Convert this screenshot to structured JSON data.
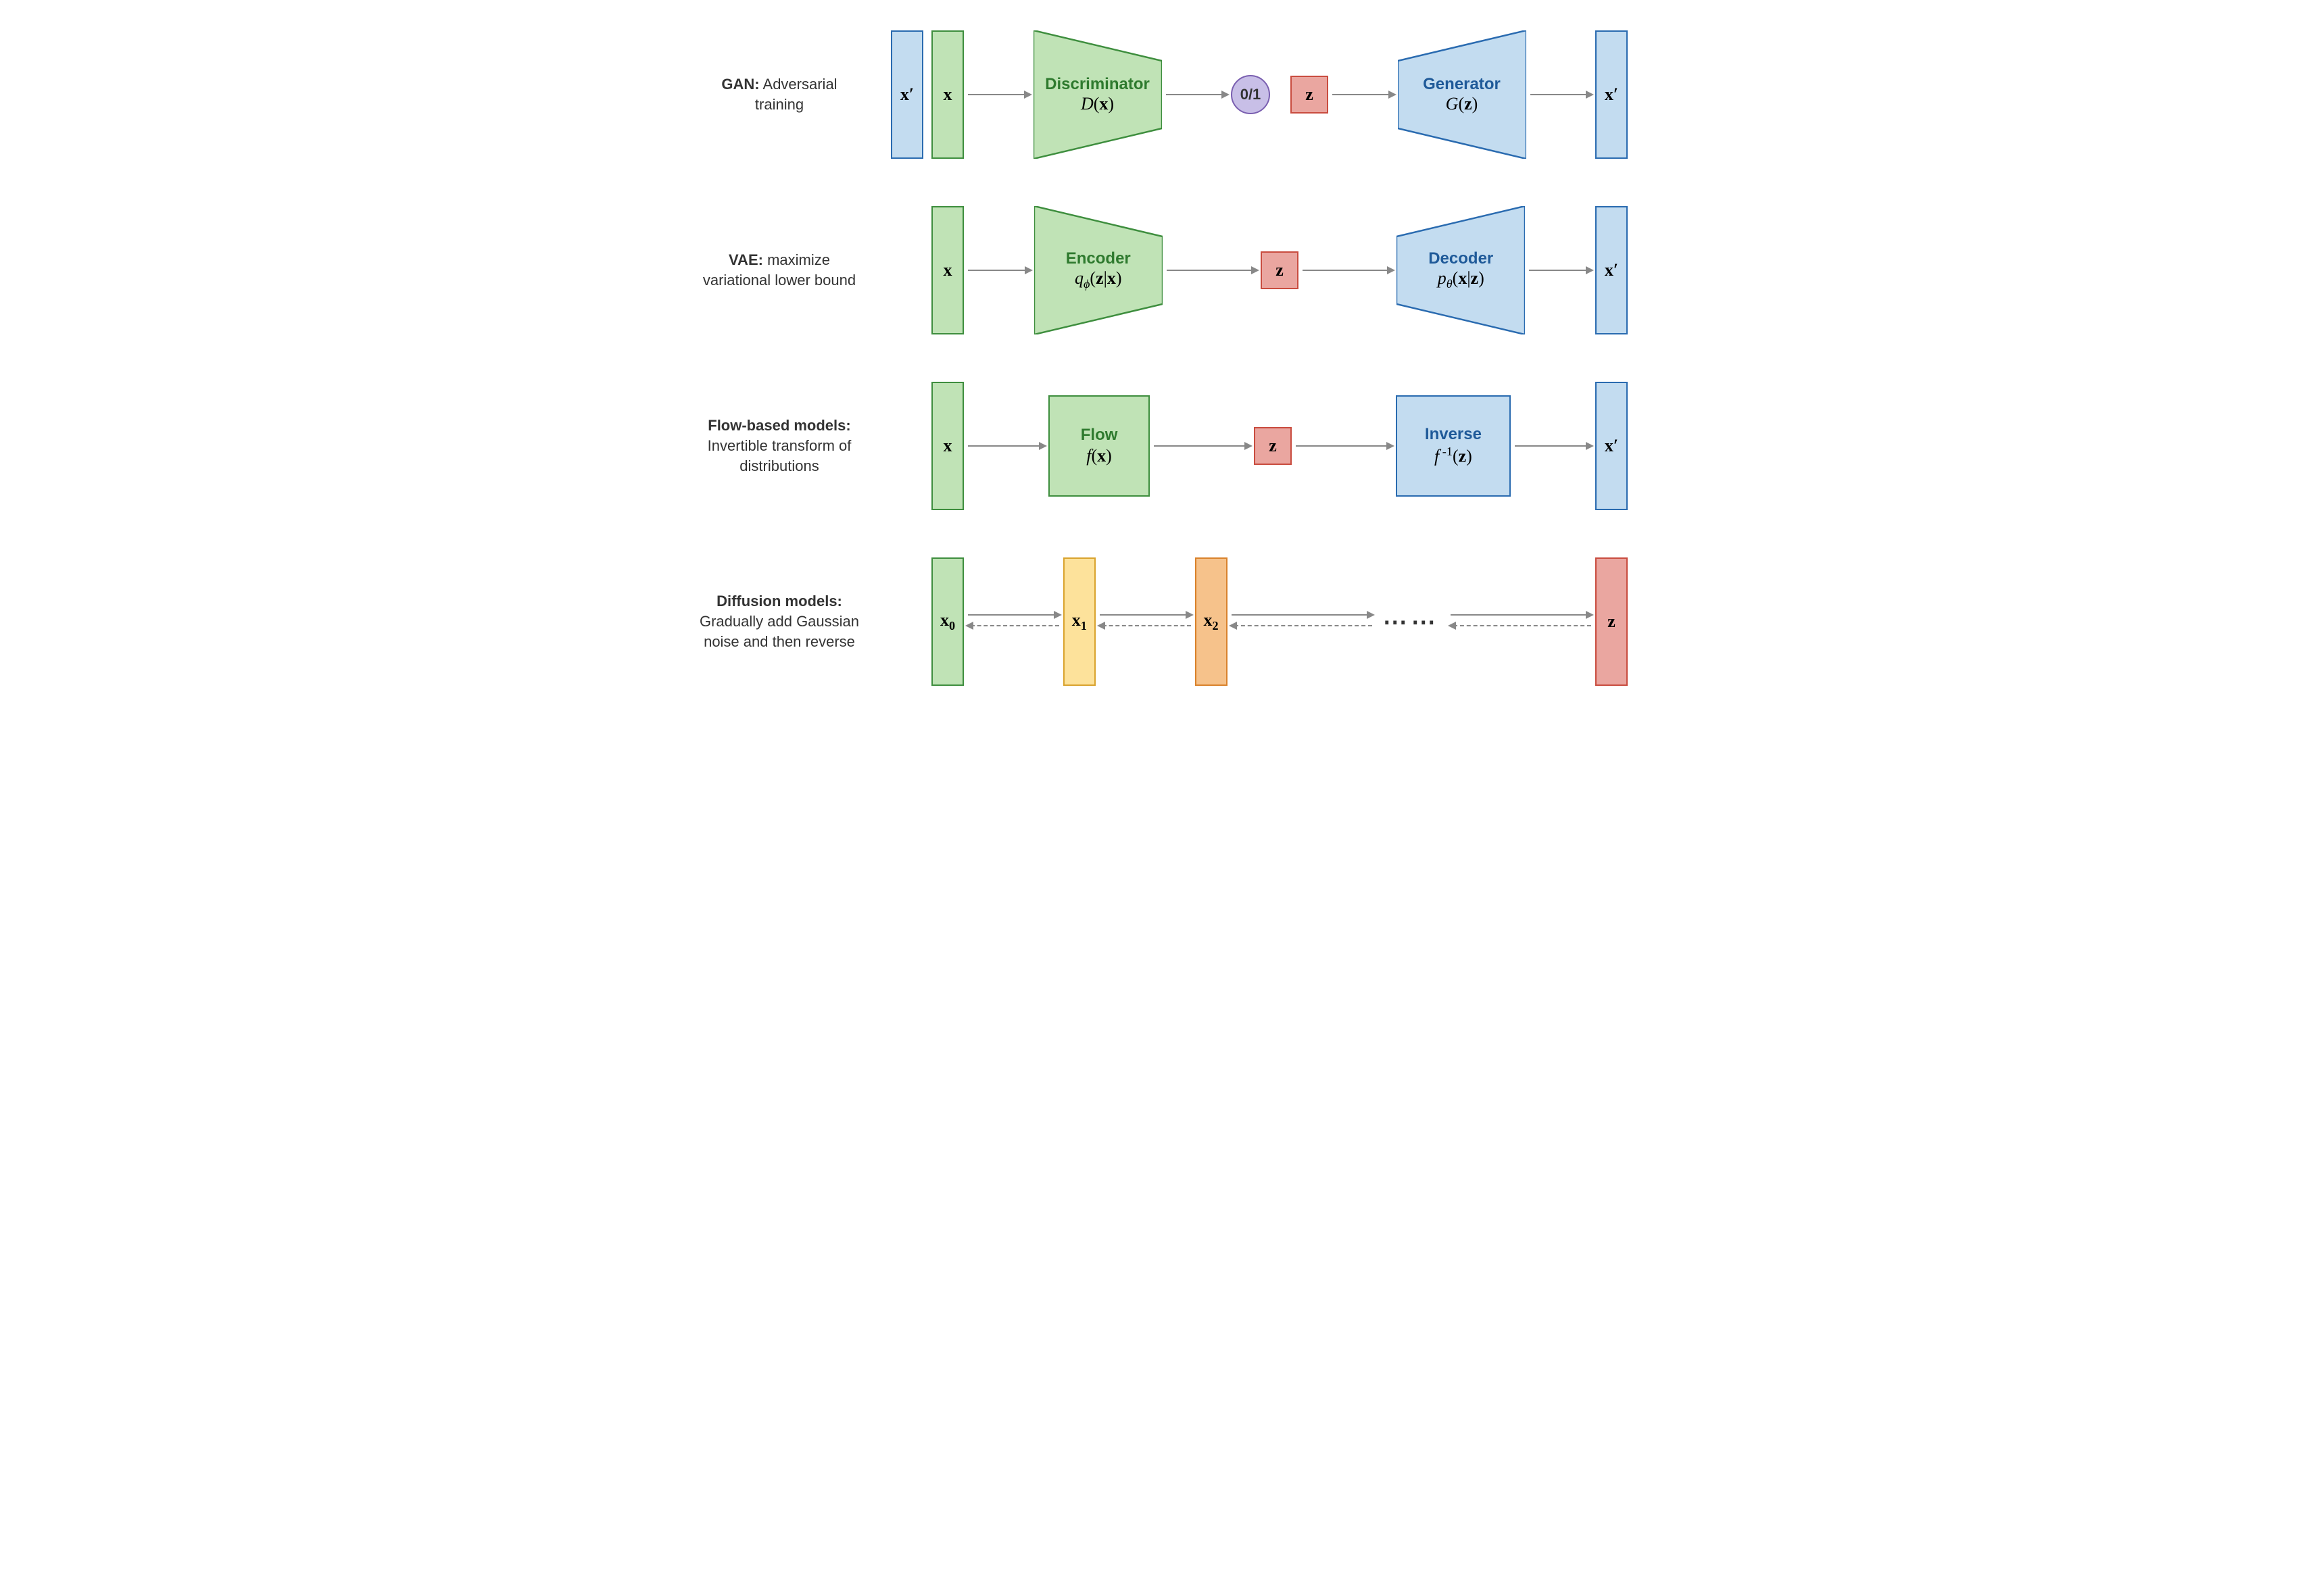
{
  "colors": {
    "green_fill": "#c0e3b6",
    "green_stroke": "#3e8e3e",
    "blue_fill": "#c3dcf0",
    "blue_stroke": "#2a6bb0",
    "red_fill": "#eaa6a0",
    "red_stroke": "#c94c3f",
    "purple_fill": "#c8bfe7",
    "purple_stroke": "#7a5fb0",
    "yellow_fill": "#fde29b",
    "yellow_stroke": "#d9a32e",
    "orange_fill": "#f6c28b",
    "orange_stroke": "#d9822b",
    "arrow": "#888888",
    "text": "#333333",
    "green_title": "#2e7a2e",
    "blue_title": "#1f5a99"
  },
  "rows": {
    "gan": {
      "title": "GAN:",
      "sub": " Adversarial",
      "sub2": "training",
      "xprime": "x′",
      "x": "x",
      "disc_title": "Discriminator",
      "disc_math": "D(x)",
      "out": "0/1",
      "z": "z",
      "gen_title": "Generator",
      "gen_math": "G(z)",
      "xprime2": "x′"
    },
    "vae": {
      "title": "VAE:",
      "sub": " maximize",
      "sub2": "variational lower bound",
      "x": "x",
      "enc_title": "Encoder",
      "enc_math": "q_φ(z|x)",
      "z": "z",
      "dec_title": "Decoder",
      "dec_math": "p_θ(x|z)",
      "xprime": "x′"
    },
    "flow": {
      "title": "Flow-based models:",
      "sub2a": "Invertible transform of",
      "sub2b": "distributions",
      "x": "x",
      "flow_title": "Flow",
      "flow_math": "f(x)",
      "z": "z",
      "inv_title": "Inverse",
      "inv_math": "f⁻¹(z)",
      "xprime": "x′"
    },
    "diff": {
      "title": "Diffusion models:",
      "sub2a": "Gradually add Gaussian",
      "sub2b": "noise and then reverse",
      "x0": "x₀",
      "x1": "x₁",
      "x2": "x₂",
      "dots": "⋯⋯",
      "z": "z"
    }
  },
  "fonts": {
    "label_size": 22,
    "box_title_size": 24,
    "math_size": 26
  }
}
